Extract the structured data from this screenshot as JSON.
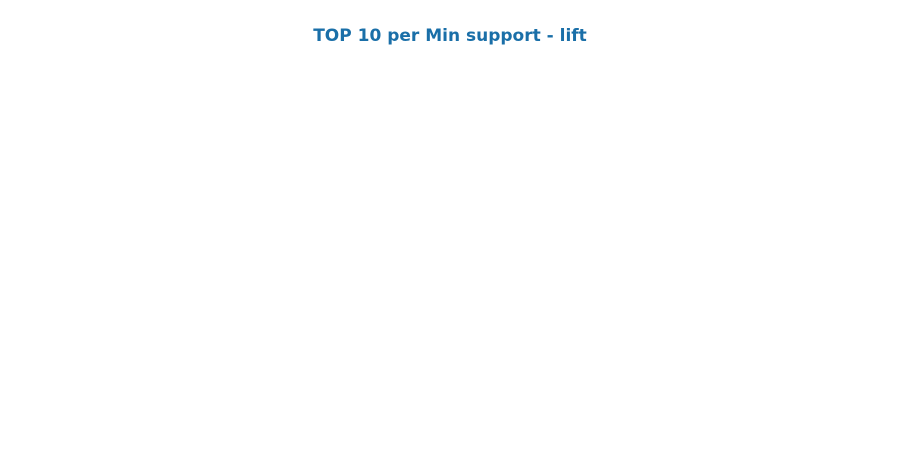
{
  "colors": {
    "title": "#1a6fa8",
    "background": "#ffffff"
  },
  "chart_data": {
    "type": "bar",
    "title": "TOP 10 per Min support - lift",
    "categories": [],
    "values": [],
    "xlabel": "",
    "ylabel": "",
    "grid": false,
    "legend": "none"
  }
}
